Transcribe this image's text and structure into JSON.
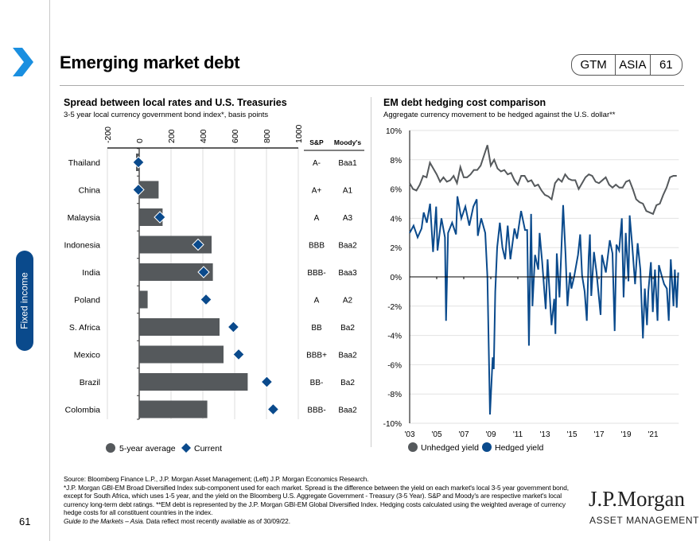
{
  "header": {
    "title": "Emerging market debt",
    "badge": [
      "GTM",
      "ASIA",
      "61"
    ]
  },
  "sidebar": {
    "section": "Fixed income",
    "page_number": "61"
  },
  "colors": {
    "accent": "#0a4a8c",
    "chevron": "#1a8fe0",
    "bar": "#55595c",
    "unhedged": "#55595c",
    "hedged": "#0a4a8c"
  },
  "left": {
    "title": "Spread between local rates and U.S. Treasuries",
    "subtitle": "3-5 year local currency government bond index*, basis points",
    "col_sp": "S&P",
    "col_moodys": "Moody's"
  },
  "right": {
    "title": "EM debt hedging cost comparison",
    "subtitle": "Aggregate currency movement to be hedged against the U.S. dollar**"
  },
  "chart_data": [
    {
      "type": "bar",
      "orientation": "horizontal",
      "categories": [
        "Thailand",
        "China",
        "Malaysia",
        "Indonesia",
        "India",
        "Poland",
        "S. Africa",
        "Mexico",
        "Brazil",
        "Colombia"
      ],
      "series": [
        {
          "name": "5-year average",
          "values": [
            -20,
            122,
            147,
            455,
            463,
            53,
            505,
            530,
            682,
            428
          ]
        },
        {
          "name": "Current",
          "marker": "diamond",
          "values": [
            -5,
            -5,
            130,
            370,
            405,
            420,
            592,
            625,
            802,
            842
          ]
        }
      ],
      "ratings": {
        "sp": [
          "A-",
          "A+",
          "A",
          "BBB",
          "BBB-",
          "A",
          "BB",
          "BBB+",
          "BB-",
          "BBB-"
        ],
        "moodys": [
          "Baa1",
          "A1",
          "A3",
          "Baa2",
          "Baa3",
          "A2",
          "Ba2",
          "Baa2",
          "Ba2",
          "Baa2"
        ]
      },
      "xlim": [
        -200,
        1000
      ],
      "xticks": [
        "-200",
        "0",
        "200",
        "400",
        "600",
        "800",
        "1000"
      ],
      "grid": true,
      "legend": "bottom"
    },
    {
      "type": "line",
      "xlim": [
        2003,
        2022.9
      ],
      "ylim": [
        -10,
        10
      ],
      "xticks": [
        {
          "v": 2003,
          "l": "'03"
        },
        {
          "v": 2005,
          "l": "'05"
        },
        {
          "v": 2007,
          "l": "'07"
        },
        {
          "v": 2009,
          "l": "'09"
        },
        {
          "v": 2011,
          "l": "'11"
        },
        {
          "v": 2013,
          "l": "'13"
        },
        {
          "v": 2015,
          "l": "'15"
        },
        {
          "v": 2017,
          "l": "'17"
        },
        {
          "v": 2019,
          "l": "'19"
        },
        {
          "v": 2021,
          "l": "'21"
        }
      ],
      "yticks": [
        {
          "v": 10,
          "l": "10%"
        },
        {
          "v": 8,
          "l": "8%"
        },
        {
          "v": 6,
          "l": "6%"
        },
        {
          "v": 4,
          "l": "4%"
        },
        {
          "v": 2,
          "l": "2%"
        },
        {
          "v": 0,
          "l": "0%"
        },
        {
          "v": -2,
          "l": "-2%"
        },
        {
          "v": -4,
          "l": "-4%"
        },
        {
          "v": -6,
          "l": "-6%"
        },
        {
          "v": -8,
          "l": "-8%"
        },
        {
          "v": -10,
          "l": "-10%"
        }
      ],
      "grid": true,
      "legend": "bottom",
      "series": [
        {
          "name": "Unhedged yield",
          "start": 2003,
          "step": 0.25,
          "values": [
            6.4,
            6.0,
            5.9,
            6.3,
            6.9,
            6.8,
            7.8,
            7.4,
            7.0,
            6.5,
            6.8,
            6.5,
            6.6,
            6.9,
            6.4,
            7.5,
            6.8,
            6.8,
            7.0,
            7.3,
            7.3,
            7.6,
            8.3,
            9.0,
            7.6,
            8.0,
            7.4,
            7.2,
            7.3,
            7.0,
            7.1,
            6.6,
            6.3,
            6.9,
            6.9,
            6.5,
            6.6,
            6.2,
            6.3,
            5.9,
            5.6,
            5.5,
            5.3,
            6.4,
            6.7,
            6.5,
            7.0,
            6.7,
            6.6,
            6.6,
            6.0,
            6.4,
            6.8,
            7.0,
            6.9,
            6.5,
            6.4,
            6.6,
            6.8,
            6.3,
            6.1,
            6.3,
            6.1,
            6.1,
            6.5,
            6.6,
            6.0,
            5.3,
            5.1,
            5.0,
            4.5,
            4.4,
            4.3,
            4.9,
            5.0,
            5.6,
            6.1,
            6.8,
            6.9,
            6.9
          ]
        },
        {
          "name": "Hedged yield",
          "x": [
            2003.0,
            2003.29,
            2003.59,
            2003.88,
            2004.04,
            2004.27,
            2004.51,
            2004.73,
            2004.96,
            2005.06,
            2005.35,
            2005.61,
            2005.69,
            2005.84,
            2006.14,
            2006.43,
            2006.53,
            2006.82,
            2007.12,
            2007.41,
            2007.71,
            2007.96,
            2008.04,
            2008.29,
            2008.59,
            2008.75,
            2008.94,
            2009.14,
            2009.22,
            2009.33,
            2009.47,
            2009.67,
            2009.86,
            2010.06,
            2010.25,
            2010.45,
            2010.75,
            2010.94,
            2011.24,
            2011.53,
            2011.69,
            2011.82,
            2011.98,
            2012.08,
            2012.27,
            2012.51,
            2012.61,
            2012.8,
            2013.06,
            2013.2,
            2013.49,
            2013.69,
            2013.78,
            2013.88,
            2014.08,
            2014.35,
            2014.53,
            2014.67,
            2014.86,
            2014.96,
            2015.16,
            2015.45,
            2015.61,
            2015.75,
            2015.94,
            2016.1,
            2016.24,
            2016.33,
            2016.43,
            2016.63,
            2016.82,
            2017.12,
            2017.22,
            2017.51,
            2017.8,
            2018.0,
            2018.16,
            2018.29,
            2018.49,
            2018.69,
            2018.82,
            2018.98,
            2019.18,
            2019.27,
            2019.47,
            2019.67,
            2019.86,
            2020.06,
            2020.25,
            2020.39,
            2020.55,
            2020.65,
            2020.84,
            2020.98,
            2021.14,
            2021.33,
            2021.43,
            2021.63,
            2021.82,
            2022.02,
            2022.16,
            2022.31,
            2022.51,
            2022.61,
            2022.75,
            2022.86
          ],
          "values": [
            3.0,
            3.5,
            2.7,
            3.3,
            4.4,
            3.7,
            5.0,
            1.7,
            4.8,
            1.8,
            4.0,
            2.7,
            -3.0,
            3.0,
            3.7,
            2.9,
            5.5,
            4.0,
            4.8,
            3.5,
            4.8,
            5.3,
            2.8,
            4.0,
            3.0,
            0.0,
            -9.4,
            -5.5,
            -6.3,
            -1.0,
            2.0,
            3.7,
            2.0,
            1.2,
            3.5,
            1.2,
            3.3,
            2.6,
            4.5,
            3.2,
            3.2,
            -4.7,
            4.3,
            -2.0,
            1.5,
            0.5,
            3.0,
            1.0,
            -2.2,
            1.2,
            -3.3,
            -1.5,
            -3.9,
            1.6,
            -1.4,
            4.9,
            1.5,
            -2.0,
            0.3,
            -0.8,
            0.0,
            1.5,
            2.9,
            0.1,
            -1.0,
            -3.0,
            1.4,
            2.9,
            -1.3,
            1.7,
            0.3,
            -2.6,
            1.5,
            0.3,
            2.5,
            1.6,
            -3.7,
            2.2,
            1.8,
            4.0,
            -1.4,
            3.0,
            -0.3,
            4.2,
            2.0,
            -0.5,
            2.3,
            0.5,
            -4.2,
            -0.8,
            -3.3,
            -1.0,
            1.0,
            -2.4,
            0.5,
            -3.0,
            0.8,
            0.1,
            -0.5,
            -0.8,
            -3.0,
            1.2,
            -2.0,
            0.5,
            -2.1,
            0.3
          ]
        }
      ]
    }
  ],
  "footer": {
    "source": "Source: Bloomberg Finance L.P., J.P. Morgan Asset Management; (Left) J.P. Morgan Economics Research.",
    "note": "*J.P. Morgan GBI-EM Broad Diversified Index sub-component used for each market. Spread is the difference between the yield on each market's local 3-5 year government bond, except for South Africa, which uses 1-5 year, and the yield on the Bloomberg U.S. Aggregate Government - Treasury (3-5 Year). S&P and Moody's are respective market's local currency long-term debt ratings. **EM debt is represented by the J.P. Morgan GBI-EM Global Diversified Index. Hedging costs calculated using the weighted average of currency hedge costs for all constituent countries in the index.",
    "guide": "Guide to the Markets – Asia.",
    "asof": " Data reflect most recently available as of 30/09/22."
  },
  "logo": {
    "name": "J.P.Morgan",
    "sub": "ASSET MANAGEMENT"
  }
}
